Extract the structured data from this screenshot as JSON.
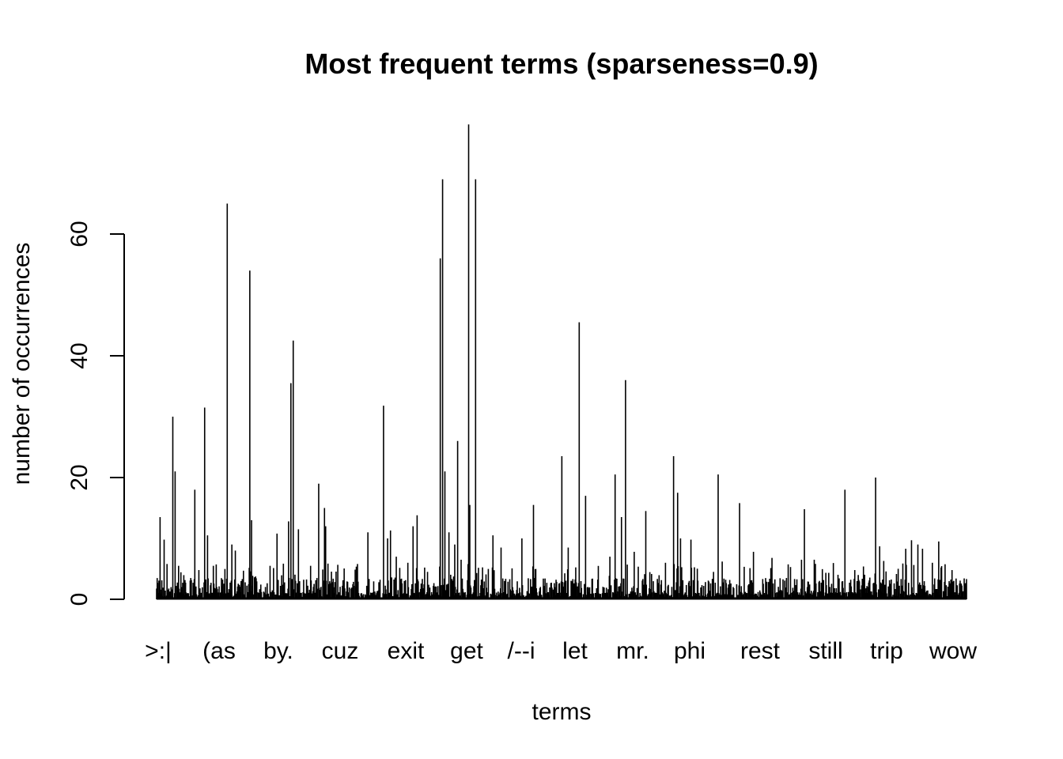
{
  "chart_data": {
    "type": "bar",
    "title": "Most frequent terms (sparseness=0.9)",
    "xlabel": "terms",
    "ylabel": "number of occurrences",
    "ylim": [
      0,
      78
    ],
    "yticks": [
      0,
      20,
      40,
      60
    ],
    "ytick_labels": [
      "0",
      "20",
      "40",
      "60"
    ],
    "xtick_labels": [
      ">:|",
      "(as",
      "by.",
      "cuz",
      "exit",
      "get",
      "/--i",
      "let",
      "mr.",
      "phi",
      "rest",
      "still",
      "trip",
      "wow"
    ],
    "grid": false,
    "legend": "none",
    "bar_color": "#000000",
    "num_terms": 1400,
    "peaks": [
      {
        "pos": 0.004,
        "value": 13.5
      },
      {
        "pos": 0.009,
        "value": 9.8
      },
      {
        "pos": 0.013,
        "value": 5.8
      },
      {
        "pos": 0.02,
        "value": 30
      },
      {
        "pos": 0.023,
        "value": 21
      },
      {
        "pos": 0.027,
        "value": 5.5
      },
      {
        "pos": 0.047,
        "value": 18
      },
      {
        "pos": 0.059,
        "value": 31.5
      },
      {
        "pos": 0.063,
        "value": 10.5
      },
      {
        "pos": 0.07,
        "value": 5.5
      },
      {
        "pos": 0.087,
        "value": 65
      },
      {
        "pos": 0.093,
        "value": 9
      },
      {
        "pos": 0.097,
        "value": 8
      },
      {
        "pos": 0.115,
        "value": 54
      },
      {
        "pos": 0.117,
        "value": 13
      },
      {
        "pos": 0.14,
        "value": 5.5
      },
      {
        "pos": 0.149,
        "value": 10.8
      },
      {
        "pos": 0.163,
        "value": 12.8
      },
      {
        "pos": 0.166,
        "value": 35.5
      },
      {
        "pos": 0.169,
        "value": 42.5
      },
      {
        "pos": 0.175,
        "value": 11.5
      },
      {
        "pos": 0.19,
        "value": 5.5
      },
      {
        "pos": 0.2,
        "value": 19
      },
      {
        "pos": 0.207,
        "value": 15
      },
      {
        "pos": 0.209,
        "value": 12
      },
      {
        "pos": 0.248,
        "value": 5.8
      },
      {
        "pos": 0.261,
        "value": 11
      },
      {
        "pos": 0.28,
        "value": 7
      },
      {
        "pos": 0.285,
        "value": 10
      },
      {
        "pos": 0.28,
        "value": 31.8
      },
      {
        "pos": 0.289,
        "value": 11.3
      },
      {
        "pos": 0.296,
        "value": 7
      },
      {
        "pos": 0.31,
        "value": 6
      },
      {
        "pos": 0.317,
        "value": 12
      },
      {
        "pos": 0.322,
        "value": 13.8
      },
      {
        "pos": 0.35,
        "value": 6.5
      },
      {
        "pos": 0.35,
        "value": 56
      },
      {
        "pos": 0.353,
        "value": 69
      },
      {
        "pos": 0.356,
        "value": 21
      },
      {
        "pos": 0.361,
        "value": 11
      },
      {
        "pos": 0.368,
        "value": 9
      },
      {
        "pos": 0.372,
        "value": 26
      },
      {
        "pos": 0.376,
        "value": 6.5
      },
      {
        "pos": 0.385,
        "value": 78
      },
      {
        "pos": 0.387,
        "value": 15.5
      },
      {
        "pos": 0.394,
        "value": 69
      },
      {
        "pos": 0.415,
        "value": 10.5
      },
      {
        "pos": 0.425,
        "value": 8.5
      },
      {
        "pos": 0.451,
        "value": 10
      },
      {
        "pos": 0.465,
        "value": 15.5
      },
      {
        "pos": 0.5,
        "value": 23.5
      },
      {
        "pos": 0.508,
        "value": 8.5
      },
      {
        "pos": 0.522,
        "value": 45.5
      },
      {
        "pos": 0.53,
        "value": 17
      },
      {
        "pos": 0.56,
        "value": 7
      },
      {
        "pos": 0.566,
        "value": 20.5
      },
      {
        "pos": 0.574,
        "value": 13.5
      },
      {
        "pos": 0.579,
        "value": 36
      },
      {
        "pos": 0.59,
        "value": 7.8
      },
      {
        "pos": 0.604,
        "value": 14.5
      },
      {
        "pos": 0.628,
        "value": 6
      },
      {
        "pos": 0.638,
        "value": 23.5
      },
      {
        "pos": 0.643,
        "value": 17.5
      },
      {
        "pos": 0.647,
        "value": 10
      },
      {
        "pos": 0.66,
        "value": 9.8
      },
      {
        "pos": 0.693,
        "value": 20.5
      },
      {
        "pos": 0.698,
        "value": 6.2
      },
      {
        "pos": 0.72,
        "value": 15.8
      },
      {
        "pos": 0.737,
        "value": 7.8
      },
      {
        "pos": 0.76,
        "value": 6.8
      },
      {
        "pos": 0.796,
        "value": 6.5
      },
      {
        "pos": 0.8,
        "value": 14.8
      },
      {
        "pos": 0.812,
        "value": 6.5
      },
      {
        "pos": 0.85,
        "value": 18
      },
      {
        "pos": 0.862,
        "value": 4.8
      },
      {
        "pos": 0.888,
        "value": 20
      },
      {
        "pos": 0.893,
        "value": 8.7
      },
      {
        "pos": 0.898,
        "value": 6.3
      },
      {
        "pos": 0.925,
        "value": 8.3
      },
      {
        "pos": 0.932,
        "value": 9.7
      },
      {
        "pos": 0.94,
        "value": 9
      },
      {
        "pos": 0.946,
        "value": 8.3
      },
      {
        "pos": 0.958,
        "value": 6
      },
      {
        "pos": 0.966,
        "value": 9.5
      },
      {
        "pos": 0.982,
        "value": 4.8
      }
    ]
  }
}
